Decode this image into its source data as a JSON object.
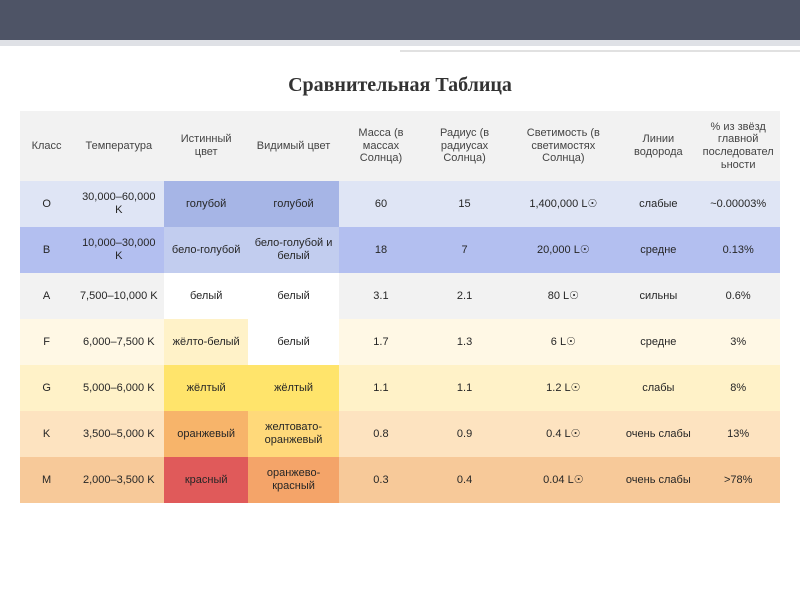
{
  "title": "Сравнительная Таблица",
  "colors": {
    "topbar_bg": "#4e5466",
    "topbar_underline": "#dfe1e6",
    "header_bg": "#f2f2f2"
  },
  "columns": [
    "Класс",
    "Температура",
    "Истинный цвет",
    "Видимый цвет",
    "Масса (в массах Солнца)",
    "Радиус (в радиусах Солнца)",
    "Светимость (в светимостях Солнца)",
    "Линии водорода",
    "% из звёзд главной последовательности"
  ],
  "column_widths_pct": [
    7,
    12,
    11,
    12,
    11,
    11,
    15,
    10,
    11
  ],
  "rows": [
    {
      "class": "O",
      "temperature": "30,000–60,000 K",
      "true_color": {
        "text": "голубой",
        "bg": "#a6b5e6"
      },
      "apparent_color": {
        "text": "голубой",
        "bg": "#a6b5e6"
      },
      "mass": "60",
      "radius": "15",
      "luminosity": "1,400,000 L☉",
      "hydrogen_lines": "слабые",
      "percent": "~0.00003%",
      "row_bg": "#dfe5f5"
    },
    {
      "class": "B",
      "temperature": "10,000–30,000 K",
      "true_color": {
        "text": "бело-голубой",
        "bg": "#c2cdef"
      },
      "apparent_color": {
        "text": "бело-голубой и белый",
        "bg": "#c2cdef"
      },
      "mass": "18",
      "radius": "7",
      "luminosity": "20,000 L☉",
      "hydrogen_lines": "средне",
      "percent": "0.13%",
      "row_bg": "#b3bff0"
    },
    {
      "class": "A",
      "temperature": "7,500–10,000 K",
      "true_color": {
        "text": "белый",
        "bg": "#ffffff"
      },
      "apparent_color": {
        "text": "белый",
        "bg": "#ffffff"
      },
      "mass": "3.1",
      "radius": "2.1",
      "luminosity": "80 L☉",
      "hydrogen_lines": "сильны",
      "percent": "0.6%",
      "row_bg": "#f2f2f2"
    },
    {
      "class": "F",
      "temperature": "6,000–7,500 K",
      "true_color": {
        "text": "жёлто-белый",
        "bg": "#fff2c8"
      },
      "apparent_color": {
        "text": "белый",
        "bg": "#ffffff"
      },
      "mass": "1.7",
      "radius": "1.3",
      "luminosity": "6 L☉",
      "hydrogen_lines": "средне",
      "percent": "3%",
      "row_bg": "#fff8e5"
    },
    {
      "class": "G",
      "temperature": "5,000–6,000 K",
      "true_color": {
        "text": "жёлтый",
        "bg": "#ffe46b"
      },
      "apparent_color": {
        "text": "жёлтый",
        "bg": "#ffe46b"
      },
      "mass": "1.1",
      "radius": "1.1",
      "luminosity": "1.2 L☉",
      "hydrogen_lines": "слабы",
      "percent": "8%",
      "row_bg": "#fff2c8"
    },
    {
      "class": "K",
      "temperature": "3,500–5,000 K",
      "true_color": {
        "text": "оранжевый",
        "bg": "#f7b46a"
      },
      "apparent_color": {
        "text": "желтовато-оранжевый",
        "bg": "#ffd97a"
      },
      "mass": "0.8",
      "radius": "0.9",
      "luminosity": "0.4 L☉",
      "hydrogen_lines": "очень слабы",
      "percent": "13%",
      "row_bg": "#fde3c0"
    },
    {
      "class": "M",
      "temperature": "2,000–3,500 K",
      "true_color": {
        "text": "красный",
        "bg": "#e05a5a"
      },
      "apparent_color": {
        "text": "оранжево-красный",
        "bg": "#f4a469"
      },
      "mass": "0.3",
      "radius": "0.4",
      "luminosity": "0.04 L☉",
      "hydrogen_lines": "очень слабы",
      "percent": ">78%",
      "row_bg": "#f7c999"
    }
  ]
}
